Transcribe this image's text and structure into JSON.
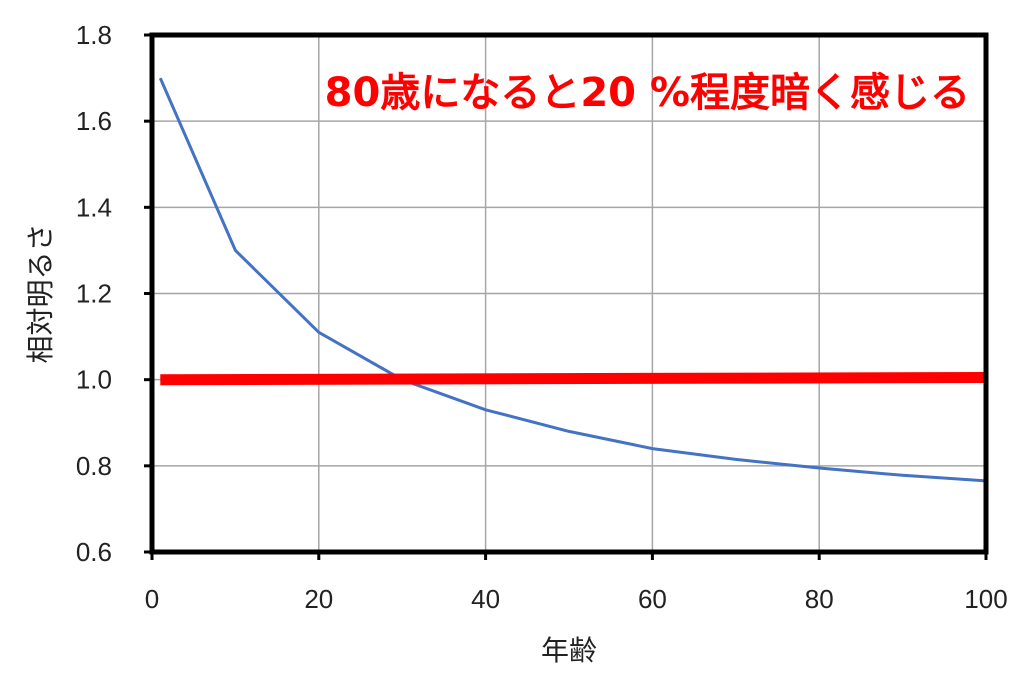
{
  "chart_data": {
    "type": "line",
    "title": "",
    "xlabel": "年齢",
    "ylabel": "相対明るさ",
    "xlim": [
      0,
      100
    ],
    "ylim": [
      0.6,
      1.8
    ],
    "x_ticks": [
      "0",
      "20",
      "40",
      "60",
      "80",
      "100"
    ],
    "y_ticks": [
      "0.6",
      "0.8",
      "1.0",
      "1.2",
      "1.4",
      "1.6",
      "1.8"
    ],
    "grid": true,
    "legend": "none",
    "series": [
      {
        "color": "#4472c4",
        "x": [
          1,
          10,
          20,
          30,
          40,
          50,
          60,
          70,
          80,
          90,
          100
        ],
        "y": [
          1.7,
          1.3,
          1.11,
          1.0,
          0.93,
          0.88,
          0.84,
          0.815,
          0.795,
          0.778,
          0.765
        ]
      },
      {
        "color": "#ff0000",
        "x": [
          1,
          100
        ],
        "y": [
          1.0,
          1.005
        ]
      }
    ],
    "annotations": [
      {
        "text": "80歳になると20 %程度暗く感じる",
        "color": "#ff0000"
      }
    ]
  }
}
